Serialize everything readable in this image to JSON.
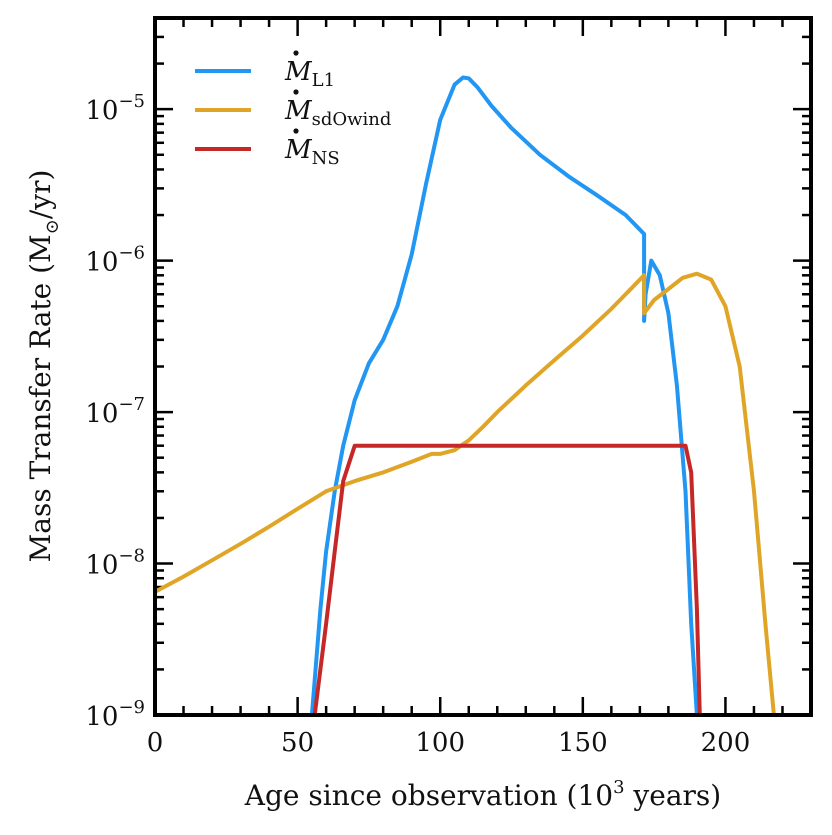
{
  "chart_data": {
    "type": "line",
    "title": "",
    "xlabel": "Age since observation (10",
    "xlabel_sup": "3",
    "xlabel_tail": " years)",
    "ylabel": "Mass Transfer Rate (M",
    "ylabel_sub": "⊙",
    "ylabel_tail": "/yr)",
    "xlim": [
      0,
      230
    ],
    "ylim": [
      1e-09,
      4e-05
    ],
    "yscale": "log",
    "grid": false,
    "legend_position": "top-left",
    "xticks": [
      0,
      50,
      100,
      150,
      200
    ],
    "xtick_labels": [
      "0",
      "50",
      "100",
      "150",
      "200"
    ],
    "yticks": [
      1e-09,
      1e-08,
      1e-07,
      1e-06,
      1e-05
    ],
    "ytick_labels": [
      {
        "base": "10",
        "exp": "−9"
      },
      {
        "base": "10",
        "exp": "−8"
      },
      {
        "base": "10",
        "exp": "−7"
      },
      {
        "base": "10",
        "exp": "−6"
      },
      {
        "base": "10",
        "exp": "−5"
      }
    ],
    "series": [
      {
        "name": "M",
        "name_sub": "L1",
        "color": "#2196f3",
        "x": [
          55,
          58,
          60,
          63,
          66,
          70,
          75,
          80,
          85,
          90,
          95,
          100,
          105,
          108,
          110,
          113,
          118,
          125,
          135,
          145,
          155,
          165,
          171.5,
          171.5,
          172,
          174,
          177,
          180,
          183,
          186,
          188,
          190
        ],
        "y": [
          1e-09,
          5e-09,
          1.2e-08,
          3e-08,
          6e-08,
          1.2e-07,
          2.1e-07,
          3e-07,
          5e-07,
          1.1e-06,
          3.2e-06,
          8.5e-06,
          1.45e-05,
          1.62e-05,
          1.6e-05,
          1.4e-05,
          1.05e-05,
          7.5e-06,
          5e-06,
          3.6e-06,
          2.7e-06,
          2e-06,
          1.5e-06,
          4e-07,
          6e-07,
          1e-06,
          8e-07,
          4.5e-07,
          1.5e-07,
          3e-08,
          4e-09,
          1e-09
        ]
      },
      {
        "name": "M",
        "name_sub": "sdOwind",
        "color": "#e0a526",
        "x": [
          0,
          10,
          20,
          30,
          40,
          50,
          60,
          70,
          80,
          90,
          97,
          100,
          105,
          110,
          115,
          120,
          130,
          140,
          150,
          160,
          171.5,
          171.5,
          175,
          180,
          185,
          190,
          195,
          200,
          205,
          210,
          214,
          217
        ],
        "y": [
          6.5e-09,
          8.2e-09,
          1.05e-08,
          1.35e-08,
          1.75e-08,
          2.3e-08,
          3e-08,
          3.5e-08,
          4e-08,
          4.7e-08,
          5.3e-08,
          5.3e-08,
          5.6e-08,
          6.5e-08,
          8e-08,
          1e-07,
          1.5e-07,
          2.2e-07,
          3.2e-07,
          4.8e-07,
          8e-07,
          4.5e-07,
          5.5e-07,
          6.5e-07,
          7.7e-07,
          8.2e-07,
          7.5e-07,
          5e-07,
          2e-07,
          3e-08,
          4e-09,
          1e-09
        ]
      },
      {
        "name": "M",
        "name_sub": "NS",
        "color": "#c62828",
        "x": [
          56,
          60,
          63,
          66,
          70,
          100,
          130,
          160,
          186,
          188,
          190,
          191
        ],
        "y": [
          1e-09,
          4e-09,
          1.2e-08,
          3.5e-08,
          6e-08,
          6e-08,
          6e-08,
          6e-08,
          6e-08,
          4e-08,
          5e-09,
          1e-09
        ]
      }
    ]
  }
}
